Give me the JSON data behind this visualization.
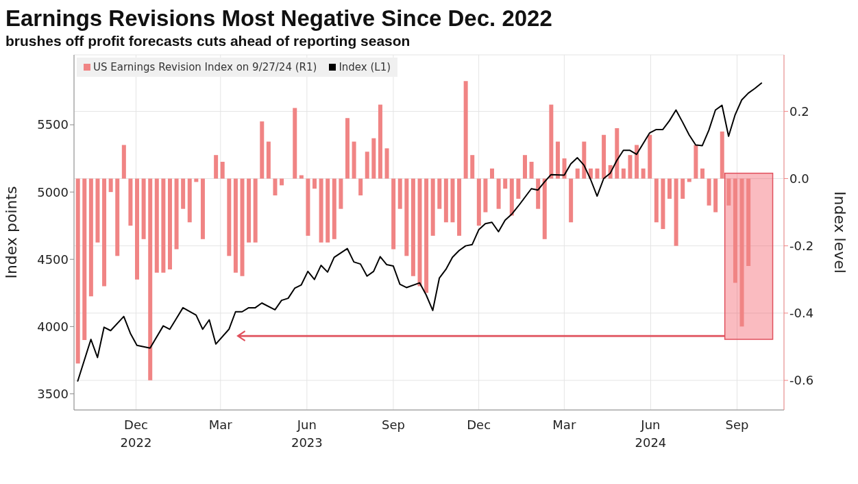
{
  "chart_data": {
    "type": "bar",
    "title": "Earnings Revisions Most Negative Since Dec. 2022",
    "subtitle": "brushes off profit forecasts cuts ahead of reporting season",
    "ylabel": "Index points",
    "y2label": "Index level",
    "xlim": [
      "2022-10-10",
      "2024-11-04"
    ],
    "xticks": [
      {
        "value": "2022-12-15",
        "label": "Dec\n2022"
      },
      {
        "value": "2023-03-15",
        "label": "Mar"
      },
      {
        "value": "2023-06-15",
        "label": "Jun\n2023"
      },
      {
        "value": "2023-09-15",
        "label": "Sep"
      },
      {
        "value": "2023-12-15",
        "label": "Dec"
      },
      {
        "value": "2024-03-15",
        "label": "Mar"
      },
      {
        "value": "2024-06-15",
        "label": "Jun\n2024"
      },
      {
        "value": "2024-09-15",
        "label": "Sep"
      }
    ],
    "ylim": [
      3380,
      6020
    ],
    "yticks": [
      3500,
      4000,
      4500,
      5000,
      5500
    ],
    "y2lim": [
      -0.688,
      0.368
    ],
    "y2ticks": [
      {
        "value": -0.6,
        "label": "-0.6"
      },
      {
        "value": -0.4,
        "label": "-0.4"
      },
      {
        "value": -0.2,
        "label": "-0.2"
      },
      {
        "value": 0,
        "label": "0.0"
      },
      {
        "value": 0.2,
        "label": "0.2"
      }
    ],
    "grid": true,
    "legend": "top left",
    "series": [
      {
        "name": "US Earnings Revision Index on 9/27/24 (R1)",
        "axis": "y2",
        "color": "#f08484",
        "x": [
          "2022-10-14",
          "2022-10-21",
          "2022-10-28",
          "2022-11-04",
          "2022-11-11",
          "2022-11-18",
          "2022-11-25",
          "2022-12-02",
          "2022-12-09",
          "2022-12-16",
          "2022-12-23",
          "2022-12-30",
          "2023-01-06",
          "2023-01-13",
          "2023-01-20",
          "2023-01-27",
          "2023-02-03",
          "2023-02-10",
          "2023-02-17",
          "2023-02-24",
          "2023-03-03",
          "2023-03-10",
          "2023-03-17",
          "2023-03-24",
          "2023-03-31",
          "2023-04-07",
          "2023-04-14",
          "2023-04-21",
          "2023-04-28",
          "2023-05-05",
          "2023-05-12",
          "2023-05-19",
          "2023-05-26",
          "2023-06-02",
          "2023-06-09",
          "2023-06-16",
          "2023-06-23",
          "2023-06-30",
          "2023-07-07",
          "2023-07-14",
          "2023-07-21",
          "2023-07-28",
          "2023-08-04",
          "2023-08-11",
          "2023-08-18",
          "2023-08-25",
          "2023-09-01",
          "2023-09-08",
          "2023-09-15",
          "2023-09-22",
          "2023-09-29",
          "2023-10-06",
          "2023-10-13",
          "2023-10-20",
          "2023-10-27",
          "2023-11-03",
          "2023-11-10",
          "2023-11-17",
          "2023-11-24",
          "2023-12-01",
          "2023-12-08",
          "2023-12-15",
          "2023-12-22",
          "2023-12-29",
          "2024-01-05",
          "2024-01-12",
          "2024-01-19",
          "2024-01-26",
          "2024-02-02",
          "2024-02-09",
          "2024-02-16",
          "2024-02-23",
          "2024-03-01",
          "2024-03-08",
          "2024-03-15",
          "2024-03-22",
          "2024-03-29",
          "2024-04-05",
          "2024-04-12",
          "2024-04-19",
          "2024-04-26",
          "2024-05-03",
          "2024-05-10",
          "2024-05-17",
          "2024-05-24",
          "2024-05-31",
          "2024-06-07",
          "2024-06-14",
          "2024-06-21",
          "2024-06-28",
          "2024-07-05",
          "2024-07-12",
          "2024-07-19",
          "2024-07-26",
          "2024-08-02",
          "2024-08-09",
          "2024-08-16",
          "2024-08-23",
          "2024-08-30",
          "2024-09-06",
          "2024-09-13",
          "2024-09-20",
          "2024-09-27"
        ],
        "values": [
          -0.55,
          -0.48,
          -0.35,
          -0.19,
          -0.32,
          -0.04,
          -0.23,
          0.1,
          -0.14,
          -0.3,
          -0.18,
          -0.6,
          -0.28,
          -0.28,
          -0.27,
          -0.21,
          -0.09,
          -0.13,
          -0.01,
          -0.18,
          0,
          0.07,
          0.05,
          -0.23,
          -0.28,
          -0.29,
          -0.19,
          -0.19,
          0.17,
          0.11,
          -0.05,
          -0.02,
          0,
          0.21,
          0.01,
          -0.17,
          -0.03,
          -0.19,
          -0.19,
          -0.18,
          -0.09,
          0.18,
          0.11,
          -0.05,
          0.08,
          0.12,
          0.22,
          0.09,
          -0.21,
          -0.09,
          -0.23,
          -0.29,
          -0.32,
          -0.34,
          -0.17,
          -0.09,
          -0.13,
          -0.13,
          -0.17,
          0.29,
          0.07,
          -0.14,
          -0.1,
          0.03,
          -0.09,
          -0.03,
          -0.11,
          -0.06,
          0.07,
          0.05,
          -0.09,
          -0.18,
          0.22,
          0.11,
          0.06,
          -0.13,
          0.03,
          0.11,
          0.03,
          0.03,
          0.13,
          0.04,
          0.15,
          0.03,
          0.07,
          0.1,
          0.03,
          0.13,
          -0.13,
          -0.15,
          -0.06,
          -0.2,
          -0.06,
          -0.01,
          0.1,
          0.03,
          -0.08,
          -0.1,
          0.14,
          -0.08,
          -0.31,
          -0.44,
          -0.26
        ]
      },
      {
        "name": "Index (L1)",
        "type": "line",
        "color": "#000000",
        "x": [
          "2022-10-14",
          "2022-10-28",
          "2022-11-04",
          "2022-11-11",
          "2022-11-18",
          "2022-12-02",
          "2022-12-09",
          "2022-12-16",
          "2022-12-30",
          "2023-01-13",
          "2023-01-20",
          "2023-02-03",
          "2023-02-17",
          "2023-02-24",
          "2023-03-03",
          "2023-03-10",
          "2023-03-24",
          "2023-03-31",
          "2023-04-07",
          "2023-04-14",
          "2023-04-21",
          "2023-04-28",
          "2023-05-12",
          "2023-05-19",
          "2023-05-26",
          "2023-06-02",
          "2023-06-09",
          "2023-06-16",
          "2023-06-23",
          "2023-06-30",
          "2023-07-07",
          "2023-07-14",
          "2023-07-28",
          "2023-08-04",
          "2023-08-11",
          "2023-08-18",
          "2023-08-25",
          "2023-09-01",
          "2023-09-08",
          "2023-09-15",
          "2023-09-22",
          "2023-09-29",
          "2023-10-13",
          "2023-10-20",
          "2023-10-27",
          "2023-11-03",
          "2023-11-10",
          "2023-11-17",
          "2023-11-24",
          "2023-12-01",
          "2023-12-08",
          "2023-12-15",
          "2023-12-22",
          "2023-12-29",
          "2024-01-05",
          "2024-01-12",
          "2024-01-19",
          "2024-01-26",
          "2024-02-02",
          "2024-02-09",
          "2024-02-16",
          "2024-02-23",
          "2024-03-01",
          "2024-03-15",
          "2024-03-22",
          "2024-03-29",
          "2024-04-05",
          "2024-04-12",
          "2024-04-19",
          "2024-04-26",
          "2024-05-03",
          "2024-05-10",
          "2024-05-17",
          "2024-05-24",
          "2024-05-31",
          "2024-06-07",
          "2024-06-14",
          "2024-06-21",
          "2024-06-28",
          "2024-07-05",
          "2024-07-12",
          "2024-07-19",
          "2024-07-26",
          "2024-08-02",
          "2024-08-09",
          "2024-08-16",
          "2024-08-23",
          "2024-08-30",
          "2024-09-06",
          "2024-09-13",
          "2024-09-20",
          "2024-09-27",
          "2024-10-04",
          "2024-10-11"
        ],
        "values": [
          3595,
          3905,
          3770,
          3995,
          3970,
          4075,
          3950,
          3860,
          3840,
          4005,
          3980,
          4140,
          4085,
          3980,
          4050,
          3870,
          3980,
          4110,
          4110,
          4140,
          4140,
          4175,
          4125,
          4195,
          4210,
          4285,
          4310,
          4410,
          4350,
          4455,
          4405,
          4515,
          4580,
          4480,
          4465,
          4375,
          4410,
          4520,
          4460,
          4450,
          4315,
          4290,
          4325,
          4235,
          4120,
          4360,
          4425,
          4515,
          4565,
          4600,
          4610,
          4720,
          4765,
          4775,
          4705,
          4790,
          4835,
          4895,
          4960,
          5025,
          5015,
          5075,
          5130,
          5125,
          5210,
          5255,
          5200,
          5095,
          4970,
          5100,
          5140,
          5235,
          5310,
          5310,
          5280,
          5360,
          5440,
          5465,
          5465,
          5530,
          5610,
          5520,
          5425,
          5350,
          5345,
          5460,
          5610,
          5645,
          5415,
          5575,
          5685,
          5735,
          5770,
          5810
        ]
      }
    ]
  }
}
